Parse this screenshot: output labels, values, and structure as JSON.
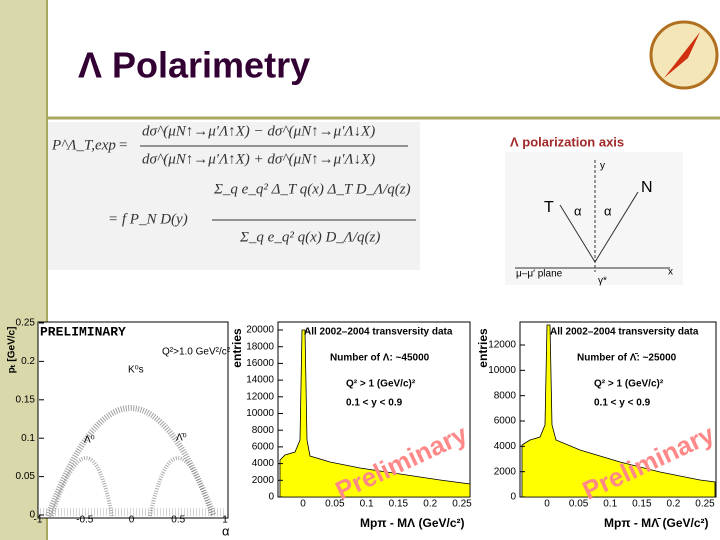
{
  "title": "Λ Polarimetry",
  "formula": {
    "lhs": "P^Λ_T,exp",
    "eq": "=",
    "num": "dσ^(μN↑→μ′Λ↑X) − dσ^(μN↑→μ′Λ↓X)",
    "den": "dσ^(μN↑→μ′Λ↑X) + dσ^(μN↑→μ′Λ↓X)",
    "rhs": "= f P_N D(y)",
    "num2": "Σ_q e_q² Δ_T q(x) Δ_T D_Λ/q(z)",
    "den2": "Σ_q e_q² q(x) D_Λ/q(z)"
  },
  "diagram": {
    "caption": "Λ polarization axis",
    "y": "y",
    "x": "x",
    "n": "N",
    "t": "T",
    "alpha1": "α",
    "alpha2": "α",
    "plane": "μ–μ′ plane",
    "gamma": "γ*"
  },
  "scatter": {
    "ylabel": "pₜ [GeV/c]",
    "xlabel": "α",
    "stamp": "PRELIMINARY",
    "cut": "Q²>1.0 GeV²/c²",
    "k0": "K⁰s",
    "lambda": "Λ⁰",
    "antilambda": "Λ̄⁰",
    "yticks": [
      "0.25",
      "0.2",
      "0.15",
      "0.1",
      "0.05",
      "0"
    ],
    "xticks": [
      "-1",
      "-0.5",
      "0",
      "0.5",
      "1"
    ]
  },
  "hist1": {
    "ylabel": "entries",
    "header": "All 2002–2004 transversity data",
    "count": "Number of Λ: ~45000",
    "q2": "Q² > 1 (GeV/c)²",
    "ycut": "0.1 < y < 0.9",
    "stamp": "Preliminary",
    "xlabel": "Mpπ - MΛ (GeV/c²)",
    "yticks": [
      "20000",
      "18000",
      "16000",
      "14000",
      "12000",
      "10000",
      "8000",
      "6000",
      "4000",
      "2000",
      "0"
    ],
    "xticks": [
      "0",
      "0.05",
      "0.1",
      "0.15",
      "0.2",
      "0.25"
    ]
  },
  "hist2": {
    "ylabel": "entries",
    "header": "All 2002–2004 transversity data",
    "count": "Number of Λ̄: ~25000",
    "q2": "Q² > 1 (GeV/c)²",
    "ycut": "0.1 < y < 0.9",
    "stamp": "Preliminary",
    "xlabel": "Mpπ - MΛ̄ (GeV/c²)",
    "yticks": [
      "12000",
      "10000",
      "8000",
      "6000",
      "4000",
      "2000",
      "0"
    ],
    "xticks": [
      "0",
      "0.05",
      "0.1",
      "0.15",
      "0.2",
      "0.25"
    ]
  }
}
